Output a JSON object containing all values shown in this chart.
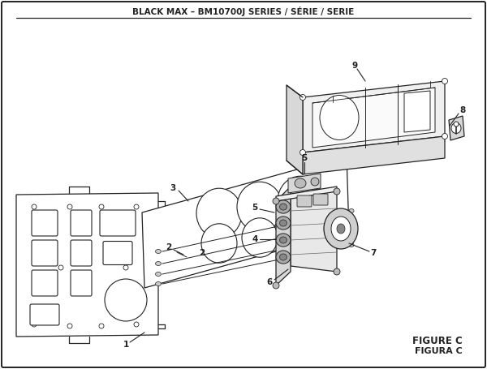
{
  "title": "BLACK MAX – BM10700J SERIES / SÉRIE / SERIE",
  "figure_label": "FIGURE C",
  "figura_label": "FIGURA C",
  "bg_color": "#ffffff",
  "border_color": "#222222",
  "line_color": "#222222",
  "figsize": [
    6.0,
    4.55
  ],
  "dpi": 100
}
